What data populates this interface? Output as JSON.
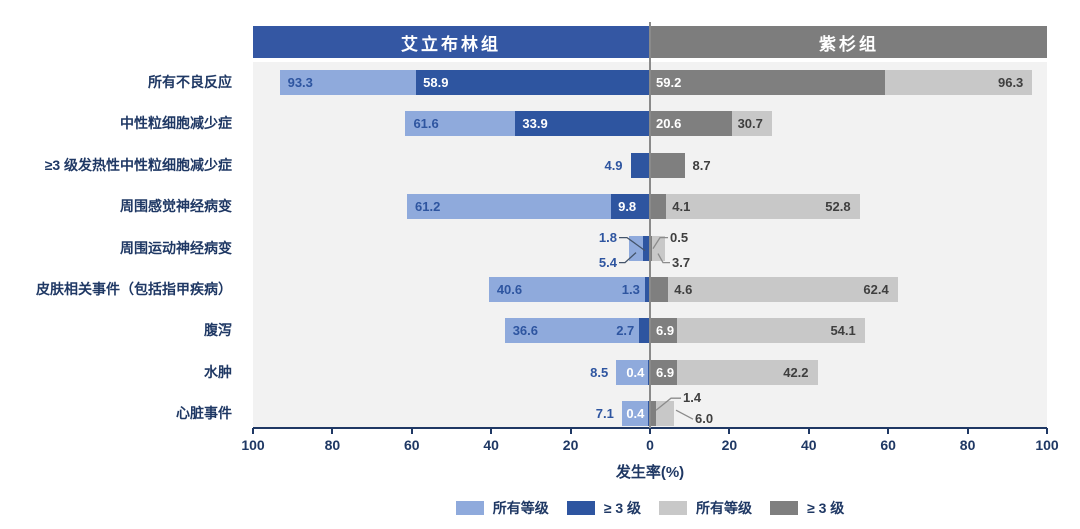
{
  "chart_data": {
    "type": "bar",
    "subtype": "diverging-tornado-horizontal",
    "group_left": "艾立布林组",
    "group_right": "紫杉组",
    "xlabel": "发生率(%)",
    "x_ticks": [
      "100",
      "80",
      "60",
      "40",
      "20",
      "0",
      "20",
      "40",
      "60",
      "80",
      "100"
    ],
    "xlim_each_side": [
      0,
      100
    ],
    "grid": false,
    "legend_position": "bottom",
    "legend": [
      {
        "label": "所有等级",
        "series": "eribulin-all-grade",
        "color": "#8FAADC"
      },
      {
        "label": "≥ 3 级",
        "series": "eribulin-grade3plus",
        "color": "#2E55A0"
      },
      {
        "label": "所有等级",
        "series": "taxane-all-grade",
        "color": "#C8C8C8"
      },
      {
        "label": "≥ 3 级",
        "series": "taxane-grade3plus",
        "color": "#7F7F7F"
      }
    ],
    "rows": [
      {
        "category": "所有不良反应",
        "left": {
          "all": 93.3,
          "g3": 58.9
        },
        "right": {
          "all": 96.3,
          "g3": 59.2
        },
        "label_style": {
          "la": "in",
          "lg": "in",
          "rg": "in",
          "ra": "in"
        }
      },
      {
        "category": "中性粒细胞减少症",
        "left": {
          "all": 61.6,
          "g3": 33.9
        },
        "right": {
          "all": 30.7,
          "g3": 20.6
        },
        "label_style": {
          "la": "in",
          "lg": "in",
          "rg": "in",
          "ra": "in"
        }
      },
      {
        "category": "≥3 级发热性中性粒细胞减少症",
        "left": {
          "all": null,
          "g3": 4.9
        },
        "right": {
          "all": null,
          "g3": 8.7
        },
        "label_style": {
          "la": null,
          "lg": "out",
          "rg": "out",
          "ra": null
        }
      },
      {
        "category": "周围感觉神经病变",
        "left": {
          "all": 61.2,
          "g3": 9.8
        },
        "right": {
          "all": 52.8,
          "g3": 4.1
        },
        "label_style": {
          "la": "in",
          "lg": "in",
          "rg": "after",
          "ra": "in"
        }
      },
      {
        "category": "周围运动神经病变",
        "left": {
          "all": 5.4,
          "g3": 1.8
        },
        "right": {
          "all": 3.7,
          "g3": 0.5
        },
        "label_style": {
          "la": "callout",
          "lg": "callout",
          "rg": "callout",
          "ra": "callout"
        }
      },
      {
        "category": "皮肤相关事件（包括指甲疾病）",
        "left": {
          "all": 40.6,
          "g3": 1.3
        },
        "right": {
          "all": 62.4,
          "g3": 4.6
        },
        "label_style": {
          "la": "in",
          "lg": "before",
          "rg": "after",
          "ra": "in"
        }
      },
      {
        "category": "腹泻",
        "left": {
          "all": 36.6,
          "g3": 2.7
        },
        "right": {
          "all": 54.1,
          "g3": 6.9
        },
        "label_style": {
          "la": "in",
          "lg": "before",
          "rg": "in",
          "ra": "in"
        }
      },
      {
        "category": "水肿",
        "left": {
          "all": 8.5,
          "g3": 0.4
        },
        "right": {
          "all": 42.2,
          "g3": 6.9
        },
        "label_style": {
          "la": "out",
          "lg": "before-white",
          "rg": "in",
          "ra": "in"
        }
      },
      {
        "category": "心脏事件",
        "left": {
          "all": 7.1,
          "g3": 0.4
        },
        "right": {
          "all": 6.0,
          "g3": 1.4
        },
        "label_style": {
          "la": "out",
          "lg": "before-white",
          "rg": "callout",
          "ra": "callout"
        }
      }
    ]
  },
  "colors": {
    "light_blue": "#8FAADC",
    "dark_blue": "#2E55A0",
    "light_gray": "#C8C8C8",
    "dark_gray": "#7F7F7F",
    "header_blue": "#3457A3",
    "header_gray": "#7D7D7D",
    "plot_bg": "#F2F2F2",
    "navy_text": "#1F3864",
    "gray_text": "#3F3F3F",
    "center_line": "#8A8A8A",
    "leader_left": "#44546A",
    "leader_right": "#8C8C8C"
  }
}
